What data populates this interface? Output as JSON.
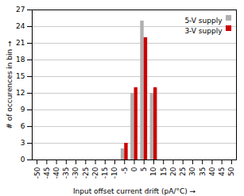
{
  "chart_data": {
    "type": "bar",
    "xlabel": "Input offset current drift (pA/°C)",
    "ylabel": "# of occurences in bin",
    "x": [
      -50,
      -45,
      -40,
      -35,
      -30,
      -25,
      -20,
      -15,
      -10,
      -5,
      0,
      5,
      10,
      15,
      20,
      25,
      30,
      35,
      40,
      45,
      50
    ],
    "series": [
      {
        "name": "5-V supply",
        "color": "#b0b0b0",
        "values": [
          0,
          0,
          0,
          0,
          0,
          0,
          0,
          0,
          0,
          2,
          12,
          25,
          12,
          0,
          0,
          0,
          0,
          0,
          0,
          0,
          0
        ]
      },
      {
        "name": "3-V supply",
        "color": "#cc0000",
        "values": [
          0,
          0,
          0,
          0,
          0,
          0,
          0,
          0,
          0,
          3,
          13,
          22,
          13,
          0,
          0,
          0,
          0,
          0,
          0,
          0,
          0
        ]
      }
    ],
    "xlim": [
      -52.5,
      52.5
    ],
    "xticks": [
      -50,
      -45,
      -40,
      -35,
      -30,
      -25,
      -20,
      -15,
      -10,
      -5,
      0,
      5,
      10,
      15,
      20,
      25,
      30,
      35,
      40,
      45,
      50
    ],
    "ylim": [
      0,
      27
    ],
    "yticks": [
      0,
      3,
      6,
      9,
      12,
      15,
      18,
      21,
      24,
      27
    ],
    "grid": true,
    "legend": "upper right"
  }
}
